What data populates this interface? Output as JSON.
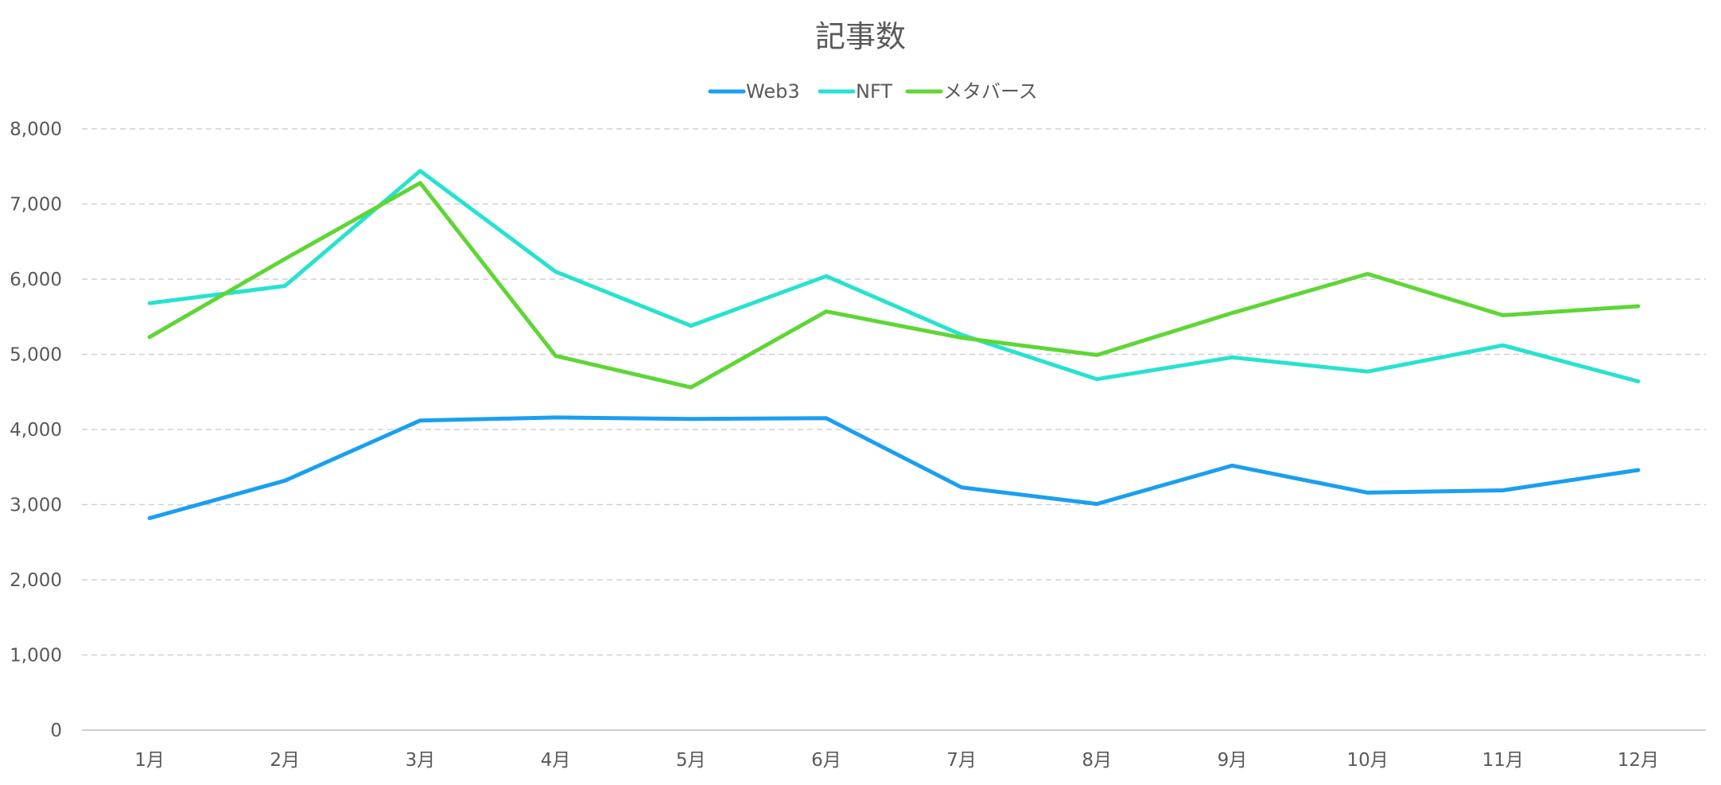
{
  "chart_data": {
    "type": "line",
    "title": "記事数",
    "categories": [
      "1月",
      "2月",
      "3月",
      "4月",
      "5月",
      "6月",
      "7月",
      "8月",
      "9月",
      "10月",
      "11月",
      "12月"
    ],
    "ylim": [
      0,
      8000
    ],
    "yticks": [
      0,
      1000,
      2000,
      3000,
      4000,
      5000,
      6000,
      7000,
      8000
    ],
    "ytick_labels": [
      "0",
      "1,000",
      "2,000",
      "3,000",
      "4,000",
      "5,000",
      "6,000",
      "7,000",
      "8,000"
    ],
    "grid": true,
    "legend_position": "top",
    "series": [
      {
        "name": "Web3",
        "color": "#1a9ff0",
        "values": [
          2820,
          3320,
          4120,
          4160,
          4140,
          4150,
          3230,
          3010,
          3520,
          3160,
          3190,
          3460
        ]
      },
      {
        "name": "NFT",
        "color": "#27e2cf",
        "values": [
          5680,
          5910,
          7440,
          6100,
          5380,
          6040,
          5260,
          4670,
          4960,
          4770,
          5120,
          4640
        ]
      },
      {
        "name": "メタバース",
        "color": "#5fd636",
        "values": [
          5230,
          6270,
          7280,
          4980,
          4560,
          5570,
          5220,
          4990,
          5550,
          6070,
          5520,
          5640
        ]
      }
    ]
  }
}
